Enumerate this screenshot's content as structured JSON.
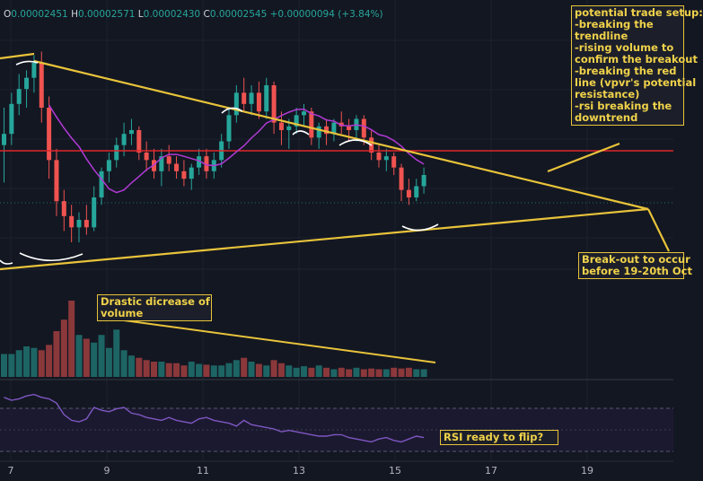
{
  "ohlc": {
    "o_label": "O",
    "o_value": "0.00002451",
    "h_label": "H",
    "h_value": "0.00002571",
    "l_label": "L",
    "l_value": "0.00002430",
    "c_label": "C",
    "c_value": "0.00002545",
    "change": "+0.00000094 (+3.84%)"
  },
  "annotations": {
    "trade_setup": [
      "potential trade setup:",
      "-breaking the",
      "trendline",
      "-rising volume to",
      "confirm the breakout",
      "-breaking the red",
      "line (vpvr's potential",
      "resistance)",
      "-rsi breaking the",
      "downtrend"
    ],
    "breakout": [
      "Break-out to occur",
      "before 19-20th Oct"
    ],
    "volume": [
      "Drastic dicrease of",
      "volume"
    ],
    "rsi": [
      "RSI ready to flip?"
    ]
  },
  "colors": {
    "background": "#131722",
    "up": "#26a69a",
    "down": "#ef5350",
    "trendline": "#e8c33a",
    "resistance": "#e0262b",
    "moving_average": "#b23ad6",
    "rsi_line": "#7e57c2",
    "annotation_arc": "#ffffff"
  },
  "chart_data": {
    "type": "candlestick",
    "x_ticks": [
      "7",
      "9",
      "11",
      "13",
      "15",
      "17",
      "19"
    ],
    "candles": [
      {
        "o": 2.452,
        "h": 2.462,
        "l": 2.442,
        "c": 2.455
      },
      {
        "o": 2.455,
        "h": 2.466,
        "l": 2.452,
        "c": 2.463
      },
      {
        "o": 2.463,
        "h": 2.471,
        "l": 2.46,
        "c": 2.467
      },
      {
        "o": 2.467,
        "h": 2.472,
        "l": 2.462,
        "c": 2.47
      },
      {
        "o": 2.47,
        "h": 2.476,
        "l": 2.466,
        "c": 2.474
      },
      {
        "o": 2.474,
        "h": 2.477,
        "l": 2.458,
        "c": 2.462
      },
      {
        "o": 2.462,
        "h": 2.465,
        "l": 2.443,
        "c": 2.448
      },
      {
        "o": 2.448,
        "h": 2.451,
        "l": 2.433,
        "c": 2.437
      },
      {
        "o": 2.437,
        "h": 2.44,
        "l": 2.429,
        "c": 2.433
      },
      {
        "o": 2.433,
        "h": 2.436,
        "l": 2.426,
        "c": 2.43
      },
      {
        "o": 2.43,
        "h": 2.434,
        "l": 2.426,
        "c": 2.432
      },
      {
        "o": 2.432,
        "h": 2.436,
        "l": 2.428,
        "c": 2.43
      },
      {
        "o": 2.43,
        "h": 2.441,
        "l": 2.429,
        "c": 2.438
      },
      {
        "o": 2.438,
        "h": 2.446,
        "l": 2.436,
        "c": 2.445
      },
      {
        "o": 2.445,
        "h": 2.45,
        "l": 2.442,
        "c": 2.448
      },
      {
        "o": 2.448,
        "h": 2.454,
        "l": 2.446,
        "c": 2.452
      },
      {
        "o": 2.452,
        "h": 2.458,
        "l": 2.449,
        "c": 2.455
      },
      {
        "o": 2.455,
        "h": 2.459,
        "l": 2.452,
        "c": 2.456
      },
      {
        "o": 2.456,
        "h": 2.457,
        "l": 2.448,
        "c": 2.45
      },
      {
        "o": 2.45,
        "h": 2.453,
        "l": 2.445,
        "c": 2.448
      },
      {
        "o": 2.448,
        "h": 2.451,
        "l": 2.443,
        "c": 2.445
      },
      {
        "o": 2.445,
        "h": 2.451,
        "l": 2.441,
        "c": 2.449
      },
      {
        "o": 2.449,
        "h": 2.452,
        "l": 2.445,
        "c": 2.447
      },
      {
        "o": 2.447,
        "h": 2.449,
        "l": 2.443,
        "c": 2.445
      },
      {
        "o": 2.445,
        "h": 2.448,
        "l": 2.441,
        "c": 2.443
      },
      {
        "o": 2.443,
        "h": 2.447,
        "l": 2.44,
        "c": 2.446
      },
      {
        "o": 2.446,
        "h": 2.451,
        "l": 2.444,
        "c": 2.449
      },
      {
        "o": 2.449,
        "h": 2.451,
        "l": 2.443,
        "c": 2.445
      },
      {
        "o": 2.445,
        "h": 2.45,
        "l": 2.443,
        "c": 2.448
      },
      {
        "o": 2.448,
        "h": 2.455,
        "l": 2.446,
        "c": 2.453
      },
      {
        "o": 2.453,
        "h": 2.462,
        "l": 2.451,
        "c": 2.46
      },
      {
        "o": 2.46,
        "h": 2.468,
        "l": 2.458,
        "c": 2.466
      },
      {
        "o": 2.466,
        "h": 2.47,
        "l": 2.461,
        "c": 2.463
      },
      {
        "o": 2.463,
        "h": 2.468,
        "l": 2.46,
        "c": 2.466
      },
      {
        "o": 2.466,
        "h": 2.469,
        "l": 2.459,
        "c": 2.461
      },
      {
        "o": 2.461,
        "h": 2.47,
        "l": 2.459,
        "c": 2.468
      },
      {
        "o": 2.468,
        "h": 2.469,
        "l": 2.455,
        "c": 2.458
      },
      {
        "o": 2.458,
        "h": 2.461,
        "l": 2.452,
        "c": 2.456
      },
      {
        "o": 2.456,
        "h": 2.459,
        "l": 2.451,
        "c": 2.457
      },
      {
        "o": 2.457,
        "h": 2.462,
        "l": 2.455,
        "c": 2.46
      },
      {
        "o": 2.46,
        "h": 2.463,
        "l": 2.457,
        "c": 2.461
      },
      {
        "o": 2.461,
        "h": 2.462,
        "l": 2.452,
        "c": 2.454
      },
      {
        "o": 2.454,
        "h": 2.458,
        "l": 2.451,
        "c": 2.457
      },
      {
        "o": 2.457,
        "h": 2.459,
        "l": 2.452,
        "c": 2.455
      },
      {
        "o": 2.455,
        "h": 2.459,
        "l": 2.453,
        "c": 2.458
      },
      {
        "o": 2.458,
        "h": 2.461,
        "l": 2.455,
        "c": 2.457
      },
      {
        "o": 2.457,
        "h": 2.459,
        "l": 2.453,
        "c": 2.456
      },
      {
        "o": 2.456,
        "h": 2.46,
        "l": 2.453,
        "c": 2.459
      },
      {
        "o": 2.459,
        "h": 2.46,
        "l": 2.452,
        "c": 2.454
      },
      {
        "o": 2.454,
        "h": 2.456,
        "l": 2.448,
        "c": 2.45
      },
      {
        "o": 2.45,
        "h": 2.452,
        "l": 2.446,
        "c": 2.448
      },
      {
        "o": 2.448,
        "h": 2.451,
        "l": 2.445,
        "c": 2.449
      },
      {
        "o": 2.449,
        "h": 2.45,
        "l": 2.444,
        "c": 2.446
      },
      {
        "o": 2.446,
        "h": 2.447,
        "l": 2.437,
        "c": 2.44
      },
      {
        "o": 2.44,
        "h": 2.443,
        "l": 2.436,
        "c": 2.438
      },
      {
        "o": 2.438,
        "h": 2.443,
        "l": 2.437,
        "c": 2.441
      },
      {
        "o": 2.441,
        "h": 2.446,
        "l": 2.439,
        "c": 2.444
      }
    ],
    "volume": [
      0.3,
      0.3,
      0.35,
      0.4,
      0.38,
      0.35,
      0.42,
      0.6,
      0.75,
      1.0,
      0.55,
      0.5,
      0.45,
      0.55,
      0.38,
      0.62,
      0.35,
      0.28,
      0.25,
      0.22,
      0.2,
      0.2,
      0.18,
      0.18,
      0.15,
      0.2,
      0.17,
      0.16,
      0.15,
      0.15,
      0.18,
      0.22,
      0.25,
      0.2,
      0.17,
      0.15,
      0.22,
      0.18,
      0.15,
      0.12,
      0.14,
      0.12,
      0.15,
      0.12,
      0.1,
      0.12,
      0.1,
      0.12,
      0.1,
      0.11,
      0.1,
      0.1,
      0.12,
      0.11,
      0.12,
      0.1,
      0.1
    ],
    "rsi": [
      62,
      60,
      61,
      63,
      64,
      62,
      61,
      58,
      50,
      46,
      45,
      47,
      55,
      53,
      52,
      54,
      55,
      51,
      50,
      48,
      47,
      46,
      48,
      46,
      45,
      44,
      47,
      48,
      46,
      45,
      44,
      42,
      46,
      43,
      42,
      41,
      40,
      38,
      39,
      38,
      37,
      36,
      35,
      35,
      36,
      36,
      34,
      33,
      32,
      31,
      33,
      34,
      32,
      31,
      33,
      35,
      34
    ]
  }
}
